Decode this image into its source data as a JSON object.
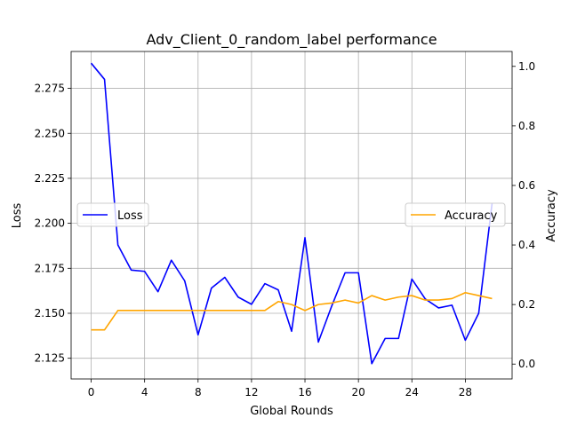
{
  "chart_data": {
    "type": "line",
    "title": "Adv_Client_0_random_label performance",
    "xlabel": "Global Rounds",
    "ylabel_left": "Loss",
    "ylabel_right": "Accuracy",
    "xlim": [
      -1.5,
      31.5
    ],
    "ylim_left": [
      2.1135,
      2.2955
    ],
    "ylim_right": [
      -0.05,
      1.05
    ],
    "xticks": [
      0,
      4,
      8,
      12,
      16,
      20,
      24,
      28
    ],
    "yticks_left": [
      2.125,
      2.15,
      2.175,
      2.2,
      2.225,
      2.25,
      2.275
    ],
    "ytick_labels_left": [
      "2.125",
      "2.150",
      "2.175",
      "2.200",
      "2.225",
      "2.250",
      "2.275"
    ],
    "yticks_right": [
      0.0,
      0.2,
      0.4,
      0.6,
      0.8,
      1.0
    ],
    "ytick_labels_right": [
      "0.0",
      "0.2",
      "0.4",
      "0.6",
      "0.8",
      "1.0"
    ],
    "grid": true,
    "x": [
      0,
      1,
      2,
      3,
      4,
      5,
      6,
      7,
      8,
      9,
      10,
      11,
      12,
      13,
      14,
      15,
      16,
      17,
      18,
      19,
      20,
      21,
      22,
      23,
      24,
      25,
      26,
      27,
      28,
      29,
      30
    ],
    "series": [
      {
        "name": "Loss",
        "axis": "left",
        "color": "#0000ff",
        "legend_position": "center-left",
        "values": [
          2.289,
          2.28,
          2.188,
          2.174,
          2.1733,
          2.162,
          2.1795,
          2.168,
          2.138,
          2.164,
          2.17,
          2.159,
          2.155,
          2.1665,
          2.163,
          2.14,
          2.192,
          2.134,
          2.154,
          2.1725,
          2.1725,
          2.122,
          2.136,
          2.136,
          2.169,
          2.158,
          2.153,
          2.1545,
          2.135,
          2.15,
          2.211
        ]
      },
      {
        "name": "Accuracy",
        "axis": "right",
        "color": "#ffa500",
        "legend_position": "center-right",
        "values": [
          0.115,
          0.115,
          0.18,
          0.18,
          0.18,
          0.18,
          0.18,
          0.18,
          0.18,
          0.18,
          0.18,
          0.18,
          0.18,
          0.18,
          0.21,
          0.2,
          0.18,
          0.2,
          0.205,
          0.215,
          0.205,
          0.23,
          0.215,
          0.225,
          0.23,
          0.215,
          0.215,
          0.22,
          0.24,
          0.23,
          0.22
        ]
      }
    ]
  }
}
